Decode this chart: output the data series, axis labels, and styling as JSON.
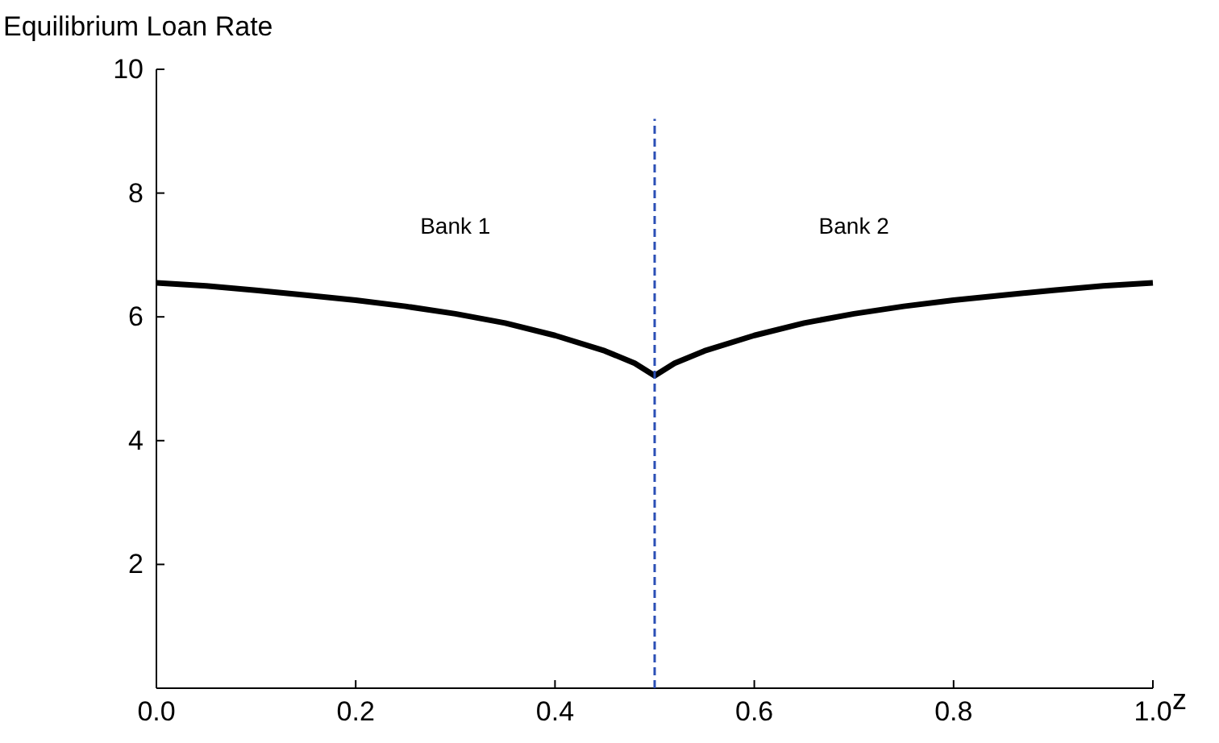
{
  "chart_data": {
    "type": "line",
    "ylabel": "Equilibrium Loan Rate",
    "xlabel": "z",
    "xlim": [
      0,
      1.0
    ],
    "ylim": [
      0,
      10
    ],
    "xticks": [
      {
        "value": 0,
        "label": "0.0"
      },
      {
        "value": 0.2,
        "label": "0.2"
      },
      {
        "value": 0.4,
        "label": "0.4"
      },
      {
        "value": 0.6,
        "label": "0.6"
      },
      {
        "value": 0.8,
        "label": "0.8"
      },
      {
        "value": 1,
        "label": "1.0"
      }
    ],
    "yticks": [
      2,
      4,
      6,
      8,
      10
    ],
    "series": [
      {
        "color": "#000000",
        "line_style": "solid",
        "x": [
          0,
          0.05,
          0.1,
          0.15,
          0.2,
          0.25,
          0.3,
          0.35,
          0.4,
          0.45,
          0.48,
          0.5,
          0.52,
          0.55,
          0.6,
          0.65,
          0.7,
          0.75,
          0.8,
          0.85,
          0.9,
          0.95,
          1.0
        ],
        "values": [
          6.55,
          6.5,
          6.43,
          6.35,
          6.27,
          6.17,
          6.05,
          5.9,
          5.7,
          5.45,
          5.25,
          5.05,
          5.25,
          5.45,
          5.7,
          5.9,
          6.05,
          6.17,
          6.27,
          6.35,
          6.43,
          6.5,
          6.55
        ]
      },
      {
        "color": "#2b4fb5",
        "line_style": "dashed",
        "x": [
          0.5,
          0.5
        ],
        "values": [
          0,
          9.2
        ]
      }
    ],
    "annotations": [
      "Bank 1",
      "Bank 2"
    ],
    "grid": false,
    "marker": "none"
  }
}
